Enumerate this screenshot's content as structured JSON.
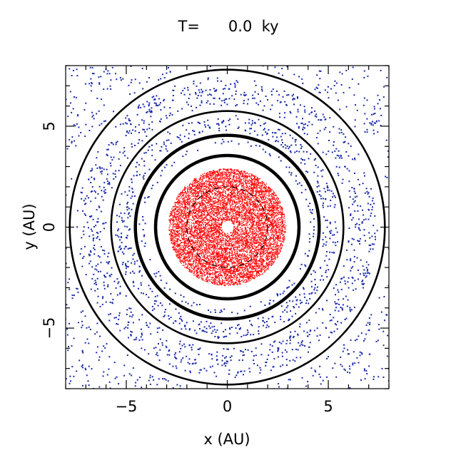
{
  "title": "T=      0.0  ky",
  "chart_data": {
    "type": "scatter",
    "title": "T=      0.0  ky",
    "xlabel": "x (AU)",
    "ylabel": "y (AU)",
    "xlim": [
      -8,
      8
    ],
    "ylim": [
      -8,
      8
    ],
    "x_ticks": [
      -5,
      0,
      5
    ],
    "y_ticks": [
      -5,
      0,
      5
    ],
    "grid": false,
    "legend": "none",
    "colors": {
      "inner_disk": "#ff0000",
      "outer_particles": "#1a2aa8",
      "orbits": "#000000"
    },
    "particle_populations": [
      {
        "color": "red",
        "r_min": 0.3,
        "r_max": 2.9,
        "distribution": "uniform annulus"
      },
      {
        "color": "blue",
        "r_min": 4.1,
        "r_max": 8.3,
        "distribution": "banded with gaps at orbit radii"
      }
    ],
    "orbits": [
      {
        "radius": 3.55,
        "style": "solid",
        "weight": "heavy"
      },
      {
        "radius": 4.55,
        "style": "solid",
        "weight": "heavy"
      },
      {
        "radius": 5.75,
        "style": "solid",
        "weight": "medium"
      },
      {
        "radius": 7.8,
        "style": "solid",
        "weight": "medium"
      },
      {
        "radius": 2.0,
        "style": "dashed",
        "weight": "light"
      }
    ]
  }
}
